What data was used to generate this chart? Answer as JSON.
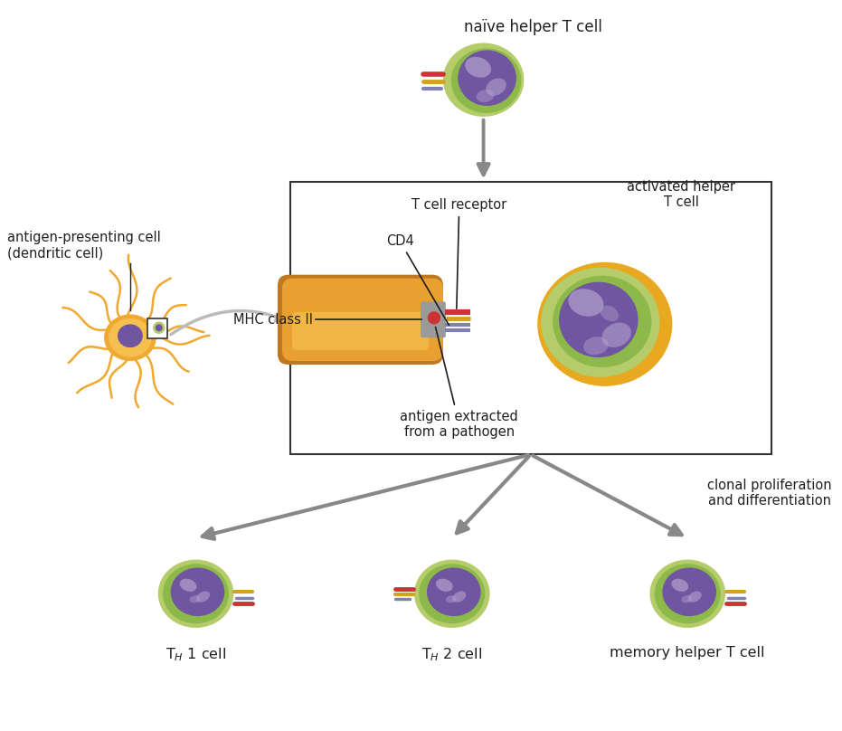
{
  "bg_color": "#ffffff",
  "text_color": "#231f20",
  "arrow_color": "#888888",
  "cell_green_outer": "#b5cc6a",
  "cell_green_mid": "#8db84a",
  "cell_green_inner": "#7aaa3a",
  "nucleus_purple": "#7055a0",
  "nucleus_dark": "#5a4088",
  "nucleus_light": "#b8a8d0",
  "dendritic_orange_light": "#f5c050",
  "dendritic_orange": "#f0a830",
  "dendritic_orange_dark": "#e09020",
  "mhc_orange_light": "#f5c050",
  "mhc_orange": "#e8a030",
  "mhc_orange_dark": "#c07820",
  "mhc_groove_gray": "#9a9a9a",
  "antigen_red": "#cc3333",
  "tcr_red": "#cc3333",
  "tcr_gold": "#d4a020",
  "tcr_purple": "#8080b8",
  "box_color": "#333333",
  "naive_label": "naïve helper T cell",
  "activated_label": "activated helper\nT cell",
  "mhc_label": "MHC class II",
  "tcr_label": "T cell receptor",
  "cd4_label": "CD4",
  "antigen_label": "antigen extracted\nfrom a pathogen",
  "dc_label": "antigen-presenting cell\n(dendritic cell)",
  "clonal_label": "clonal proliferation\nand differentiation",
  "th1_label": "T$_H$ 1 cell",
  "th2_label": "T$_H$ 2 cell",
  "memory_label": "memory helper T cell"
}
